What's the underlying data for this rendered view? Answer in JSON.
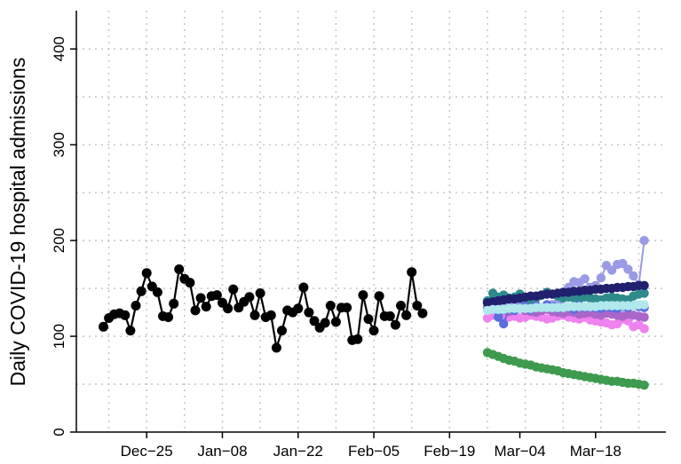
{
  "chart_data": {
    "type": "line",
    "xlabel": "",
    "ylabel": "Daily COVID-19 hospital admissions",
    "ylim": [
      0,
      440
    ],
    "xlim": [
      "2022-12-12",
      "2023-03-31"
    ],
    "grid": true,
    "legend": "none",
    "x_ticks": [
      {
        "date": "2022-12-25",
        "label": "Dec−25"
      },
      {
        "date": "2023-01-08",
        "label": "Jan−08"
      },
      {
        "date": "2023-01-22",
        "label": "Jan−22"
      },
      {
        "date": "2023-02-05",
        "label": "Feb−05"
      },
      {
        "date": "2023-02-19",
        "label": "Feb−19"
      },
      {
        "date": "2023-03-04",
        "label": "Mar−04"
      },
      {
        "date": "2023-03-18",
        "label": "Mar−18"
      }
    ],
    "y_ticks": [
      {
        "value": 0,
        "label": "0"
      },
      {
        "value": 100,
        "label": "100"
      },
      {
        "value": 200,
        "label": "200"
      },
      {
        "value": 300,
        "label": "300"
      },
      {
        "value": 400,
        "label": "400"
      }
    ],
    "observed": {
      "color": "#000000",
      "start": "2022-12-17",
      "values": [
        110,
        119,
        123,
        124,
        122,
        106,
        132,
        147,
        166,
        152,
        146,
        121,
        120,
        134,
        170,
        160,
        156,
        127,
        140,
        131,
        142,
        143,
        135,
        129,
        149,
        130,
        136,
        141,
        122,
        145,
        120,
        122,
        88,
        106,
        127,
        125,
        129,
        151,
        125,
        116,
        109,
        114,
        132,
        115,
        130,
        130,
        96,
        97,
        143,
        118,
        106,
        142,
        121,
        121,
        112,
        132,
        122,
        167,
        132,
        124
      ]
    },
    "forecast_start": "2023-02-26",
    "forecasts": [
      {
        "color": "#3e9b4e",
        "values": [
          83,
          81,
          79,
          77,
          75,
          74,
          72,
          71,
          70,
          68,
          67,
          66,
          65,
          64,
          62,
          61,
          60,
          59,
          58,
          57,
          56,
          55,
          54,
          53,
          53,
          52,
          51,
          51,
          50,
          49
        ]
      },
      {
        "color": "#9a9ae6",
        "values": [
          136,
          134,
          133,
          136,
          135,
          134,
          132,
          131,
          130,
          129,
          129,
          131,
          133,
          135,
          146,
          151,
          157,
          156,
          160,
          151,
          153,
          161,
          174,
          169,
          175,
          176,
          170,
          163,
          154,
          200
        ]
      },
      {
        "color": "#2e8b8b",
        "values": [
          137,
          145,
          141,
          143,
          140,
          141,
          144,
          139,
          138,
          140,
          143,
          146,
          144,
          142,
          140,
          141,
          140,
          139,
          141,
          140,
          139,
          138,
          140,
          141,
          140,
          139,
          138,
          142,
          144,
          145
        ]
      },
      {
        "color": "#ee82ee",
        "values": [
          119,
          122,
          124,
          122,
          120,
          121,
          119,
          120,
          122,
          121,
          120,
          118,
          119,
          121,
          122,
          120,
          119,
          118,
          120,
          117,
          116,
          115,
          114,
          112,
          113,
          118,
          116,
          110,
          112,
          108
        ]
      },
      {
        "color": "#aa66c8",
        "values": [
          130,
          128,
          129,
          127,
          126,
          128,
          129,
          127,
          126,
          125,
          127,
          128,
          126,
          125,
          124,
          126,
          125,
          123,
          124,
          125,
          123,
          122,
          124,
          123,
          122,
          121,
          123,
          122,
          121,
          120
        ]
      },
      {
        "color": "#5a6ee0",
        "values": [
          128,
          130,
          120,
          113,
          129,
          127,
          130,
          131,
          128,
          132,
          130,
          133,
          131,
          129,
          130,
          131,
          128,
          132,
          130,
          131,
          130,
          129,
          131,
          130,
          129,
          131,
          130,
          132,
          131,
          130
        ]
      },
      {
        "color": "#20206e",
        "values": [
          135,
          136,
          137,
          138,
          139,
          139,
          140,
          141,
          142,
          142,
          143,
          144,
          144,
          145,
          146,
          146,
          147,
          147,
          148,
          148,
          149,
          149,
          150,
          150,
          151,
          151,
          152,
          152,
          153,
          153
        ]
      },
      {
        "color": "#b0e8ec",
        "values": [
          127,
          128,
          128,
          128,
          129,
          129,
          129,
          129,
          129,
          130,
          130,
          130,
          130,
          130,
          130,
          131,
          131,
          131,
          131,
          131,
          131,
          132,
          132,
          132,
          132,
          132,
          132,
          132,
          133,
          133
        ]
      }
    ]
  }
}
